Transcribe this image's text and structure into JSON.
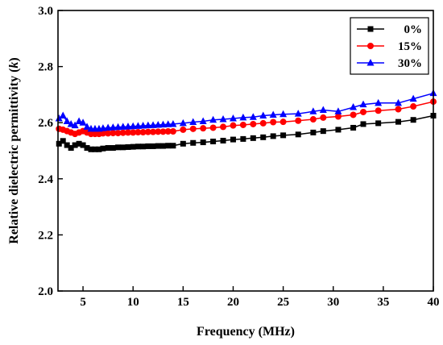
{
  "chart_data": {
    "type": "line",
    "xlabel": "Frequency (MHz)",
    "ylabel_prefix": "Relative dielectric permittivity (",
    "ylabel_symbol": "k",
    "ylabel_suffix": ")",
    "xlim": [
      2.5,
      40
    ],
    "ylim": [
      2.0,
      3.0
    ],
    "xticks": [
      5,
      10,
      15,
      20,
      25,
      30,
      35,
      40
    ],
    "yticks": [
      2.0,
      2.2,
      2.4,
      2.6,
      2.8,
      3.0
    ],
    "ytick_labels": [
      "2.0",
      "2.2",
      "2.4",
      "2.6",
      "2.8",
      "3.0"
    ],
    "grid": false,
    "legend_position": "top-right",
    "series": [
      {
        "name": "0%",
        "color": "#000000",
        "marker": "square",
        "x": [
          2.6,
          3.0,
          3.4,
          3.8,
          4.2,
          4.6,
          5.0,
          5.4,
          5.8,
          6.2,
          6.6,
          7.0,
          7.5,
          8.0,
          8.5,
          9.0,
          9.5,
          10.0,
          10.5,
          11.0,
          11.5,
          12.0,
          12.5,
          13.0,
          13.5,
          14.0,
          15.0,
          16.0,
          17.0,
          18.0,
          19.0,
          20.0,
          21.0,
          22.0,
          23.0,
          24.0,
          25.0,
          26.5,
          28.0,
          29.0,
          30.5,
          32.0,
          33.0,
          34.5,
          36.5,
          38.0,
          40.0
        ],
        "values": [
          2.525,
          2.535,
          2.52,
          2.51,
          2.52,
          2.525,
          2.52,
          2.51,
          2.505,
          2.505,
          2.505,
          2.508,
          2.51,
          2.51,
          2.512,
          2.512,
          2.513,
          2.514,
          2.515,
          2.515,
          2.516,
          2.516,
          2.517,
          2.517,
          2.518,
          2.518,
          2.525,
          2.528,
          2.53,
          2.533,
          2.536,
          2.54,
          2.542,
          2.545,
          2.548,
          2.552,
          2.555,
          2.558,
          2.565,
          2.57,
          2.575,
          2.582,
          2.595,
          2.598,
          2.603,
          2.61,
          2.625
        ]
      },
      {
        "name": "15%",
        "color": "#ff0000",
        "marker": "circle",
        "x": [
          2.6,
          3.0,
          3.4,
          3.8,
          4.2,
          4.6,
          5.0,
          5.4,
          5.8,
          6.2,
          6.6,
          7.0,
          7.5,
          8.0,
          8.5,
          9.0,
          9.5,
          10.0,
          10.5,
          11.0,
          11.5,
          12.0,
          12.5,
          13.0,
          13.5,
          14.0,
          15.0,
          16.0,
          17.0,
          18.0,
          19.0,
          20.0,
          21.0,
          22.0,
          23.0,
          24.0,
          25.0,
          26.5,
          28.0,
          29.0,
          30.5,
          32.0,
          33.0,
          34.5,
          36.5,
          38.0,
          40.0
        ],
        "values": [
          2.578,
          2.575,
          2.57,
          2.565,
          2.56,
          2.565,
          2.57,
          2.565,
          2.56,
          2.56,
          2.56,
          2.562,
          2.562,
          2.563,
          2.563,
          2.564,
          2.565,
          2.565,
          2.566,
          2.566,
          2.567,
          2.567,
          2.568,
          2.568,
          2.569,
          2.569,
          2.575,
          2.578,
          2.58,
          2.582,
          2.585,
          2.59,
          2.592,
          2.595,
          2.598,
          2.602,
          2.603,
          2.607,
          2.612,
          2.618,
          2.622,
          2.628,
          2.638,
          2.643,
          2.648,
          2.658,
          2.675
        ]
      },
      {
        "name": "30%",
        "color": "#0000ff",
        "marker": "triangle",
        "x": [
          2.6,
          3.0,
          3.4,
          3.8,
          4.2,
          4.6,
          5.0,
          5.4,
          5.8,
          6.2,
          6.6,
          7.0,
          7.5,
          8.0,
          8.5,
          9.0,
          9.5,
          10.0,
          10.5,
          11.0,
          11.5,
          12.0,
          12.5,
          13.0,
          13.5,
          14.0,
          15.0,
          16.0,
          17.0,
          18.0,
          19.0,
          20.0,
          21.0,
          22.0,
          23.0,
          24.0,
          25.0,
          26.5,
          28.0,
          29.0,
          30.5,
          32.0,
          33.0,
          34.5,
          36.5,
          38.0,
          40.0
        ],
        "values": [
          2.615,
          2.625,
          2.605,
          2.595,
          2.59,
          2.605,
          2.6,
          2.585,
          2.578,
          2.578,
          2.578,
          2.58,
          2.582,
          2.583,
          2.584,
          2.585,
          2.586,
          2.587,
          2.588,
          2.589,
          2.59,
          2.591,
          2.592,
          2.593,
          2.594,
          2.595,
          2.598,
          2.602,
          2.605,
          2.61,
          2.612,
          2.615,
          2.618,
          2.62,
          2.625,
          2.628,
          2.63,
          2.632,
          2.64,
          2.645,
          2.64,
          2.655,
          2.665,
          2.67,
          2.67,
          2.685,
          2.705
        ]
      }
    ]
  }
}
